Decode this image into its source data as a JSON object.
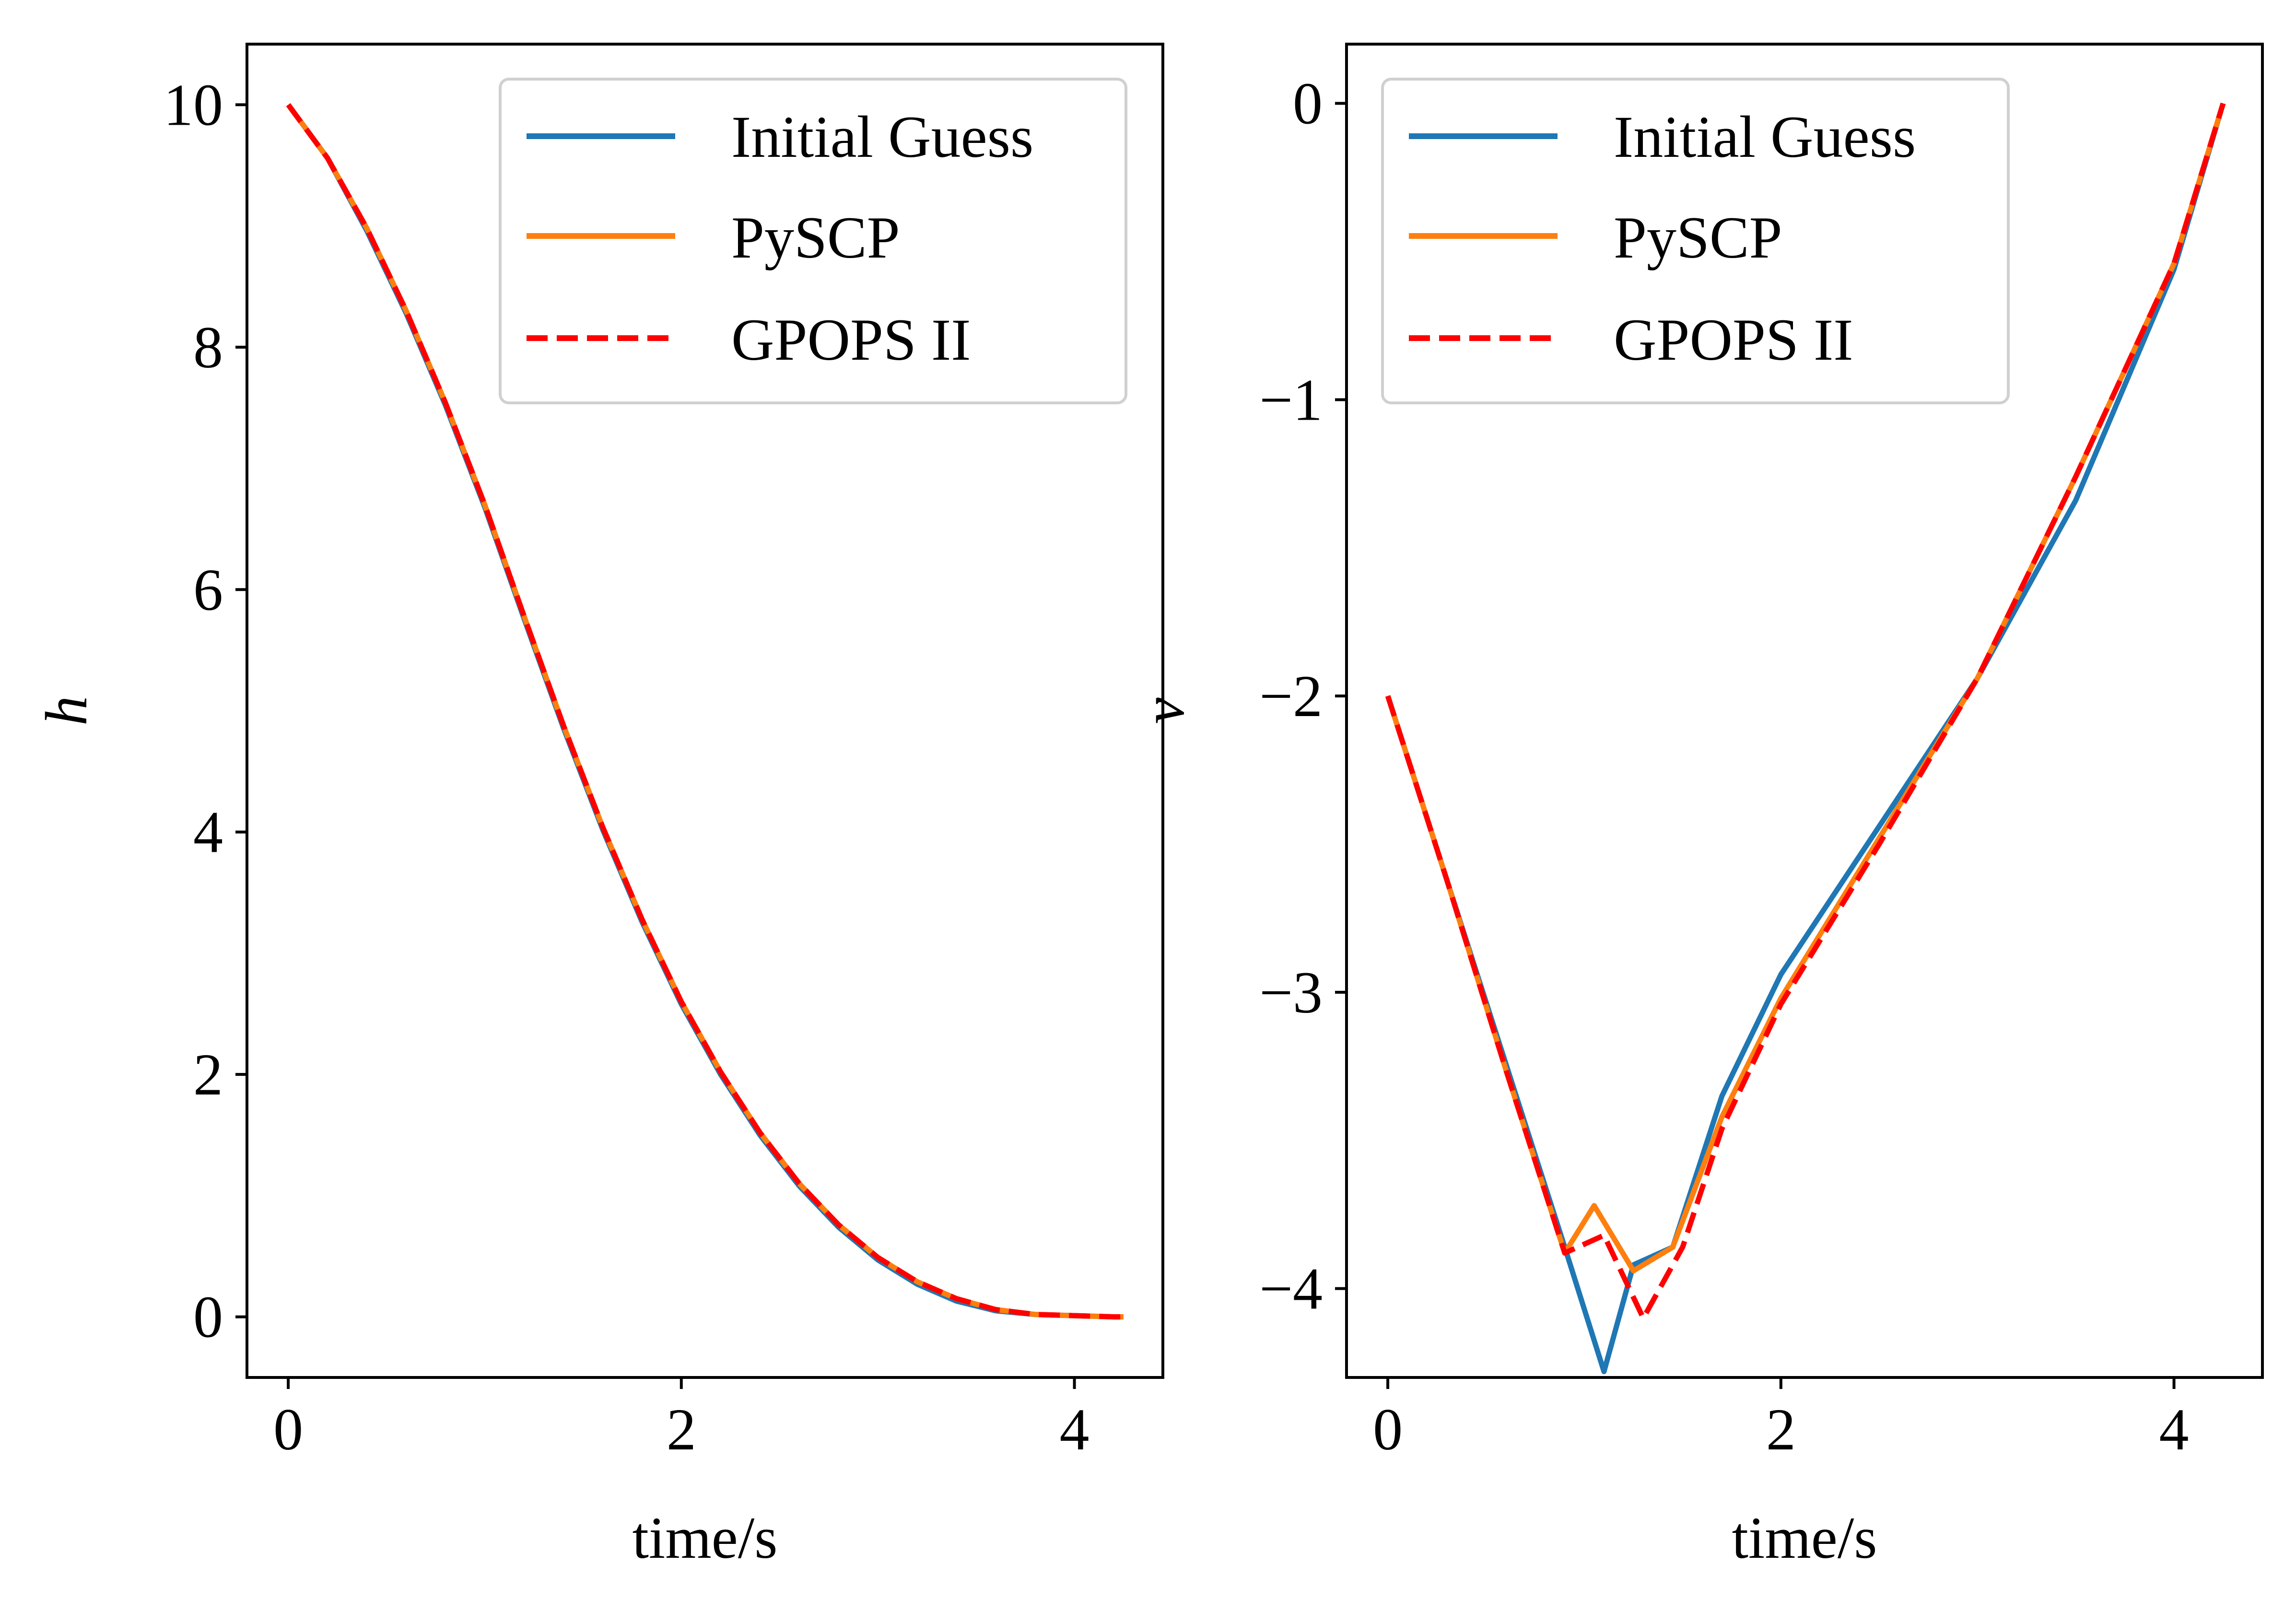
{
  "colors": {
    "initial_guess": "#1f77b4",
    "pyscp": "#ff7f0e",
    "gpops": "#ff0000",
    "legend_border": "#d0d0d0",
    "axis": "#000000"
  },
  "chart_data": [
    {
      "type": "line",
      "title": "",
      "xlabel": "time/s",
      "ylabel": "h",
      "xlim": [
        -0.21,
        4.45
      ],
      "ylim": [
        -0.5,
        10.5
      ],
      "xticks": [
        0,
        2,
        4
      ],
      "xtick_labels": [
        "0",
        "2",
        "4"
      ],
      "yticks": [
        0,
        2,
        4,
        6,
        8,
        10
      ],
      "ytick_labels": [
        "0",
        "2",
        "4",
        "6",
        "8",
        "10"
      ],
      "grid": false,
      "legend_position": "top-right",
      "legend": [
        "Initial Guess",
        "PySCP",
        "GPOPS II"
      ],
      "series": [
        {
          "name": "Initial Guess",
          "style": "solid",
          "x": [
            0,
            0.2,
            0.4,
            0.6,
            0.8,
            1.0,
            1.2,
            1.4,
            1.6,
            1.8,
            2.0,
            2.2,
            2.4,
            2.6,
            2.8,
            3.0,
            3.2,
            3.4,
            3.6,
            3.8,
            4.0,
            4.2,
            4.25
          ],
          "y": [
            10,
            9.56,
            8.96,
            8.28,
            7.52,
            6.68,
            5.76,
            4.86,
            4.02,
            3.26,
            2.58,
            2.0,
            1.5,
            1.08,
            0.74,
            0.47,
            0.27,
            0.13,
            0.05,
            0.02,
            0.01,
            0.0,
            0.0
          ]
        },
        {
          "name": "PySCP",
          "style": "solid",
          "x": [
            0,
            0.2,
            0.4,
            0.6,
            0.8,
            1.0,
            1.2,
            1.4,
            1.6,
            1.8,
            2.0,
            2.2,
            2.4,
            2.6,
            2.8,
            3.0,
            3.2,
            3.4,
            3.6,
            3.8,
            4.0,
            4.2,
            4.25
          ],
          "y": [
            10,
            9.56,
            8.98,
            8.3,
            7.54,
            6.7,
            5.78,
            4.88,
            4.04,
            3.28,
            2.6,
            2.02,
            1.52,
            1.1,
            0.76,
            0.49,
            0.29,
            0.15,
            0.06,
            0.02,
            0.01,
            0.0,
            0.0
          ]
        },
        {
          "name": "GPOPS II",
          "style": "dashed",
          "x": [
            0,
            0.2,
            0.4,
            0.6,
            0.8,
            1.0,
            1.2,
            1.4,
            1.6,
            1.8,
            2.0,
            2.2,
            2.4,
            2.6,
            2.8,
            3.0,
            3.2,
            3.4,
            3.6,
            3.8,
            4.0,
            4.2,
            4.25
          ],
          "y": [
            10,
            9.56,
            8.98,
            8.3,
            7.54,
            6.7,
            5.78,
            4.88,
            4.04,
            3.28,
            2.6,
            2.02,
            1.52,
            1.1,
            0.76,
            0.49,
            0.29,
            0.15,
            0.06,
            0.02,
            0.01,
            0.0,
            0.0
          ]
        }
      ]
    },
    {
      "type": "line",
      "title": "",
      "xlabel": "time/s",
      "ylabel": "v",
      "xlim": [
        -0.21,
        4.45
      ],
      "ylim": [
        -4.3,
        0.2
      ],
      "xticks": [
        0,
        2,
        4
      ],
      "xtick_labels": [
        "0",
        "2",
        "4"
      ],
      "yticks": [
        0,
        -1,
        -2,
        -3,
        -4
      ],
      "ytick_labels": [
        "0",
        "−1",
        "−2",
        "−3",
        "−4"
      ],
      "grid": false,
      "legend_position": "top-left",
      "legend": [
        "Initial Guess",
        "PySCP",
        "GPOPS II"
      ],
      "series": [
        {
          "name": "Initial Guess",
          "style": "solid",
          "x": [
            0,
            0.3,
            0.6,
            0.9,
            1.1,
            1.25,
            1.45,
            1.7,
            2.0,
            2.5,
            3.0,
            3.5,
            4.0,
            4.25
          ],
          "y": [
            -2.0,
            -2.62,
            -3.24,
            -3.86,
            -4.28,
            -3.92,
            -3.86,
            -3.35,
            -2.94,
            -2.44,
            -1.94,
            -1.34,
            -0.56,
            0.0
          ]
        },
        {
          "name": "PySCP",
          "style": "solid",
          "x": [
            0,
            0.3,
            0.6,
            0.9,
            1.05,
            1.25,
            1.45,
            1.7,
            2.0,
            2.5,
            3.0,
            3.5,
            4.0,
            4.25
          ],
          "y": [
            -2.0,
            -2.62,
            -3.26,
            -3.88,
            -3.72,
            -3.94,
            -3.86,
            -3.42,
            -3.02,
            -2.48,
            -1.94,
            -1.26,
            -0.54,
            0.0
          ]
        },
        {
          "name": "GPOPS II",
          "style": "dashed",
          "x": [
            0,
            0.3,
            0.6,
            0.9,
            1.1,
            1.3,
            1.5,
            1.7,
            2.0,
            2.5,
            3.0,
            3.5,
            4.0,
            4.25
          ],
          "y": [
            -2.0,
            -2.62,
            -3.26,
            -3.88,
            -3.82,
            -4.1,
            -3.86,
            -3.46,
            -3.04,
            -2.5,
            -1.94,
            -1.26,
            -0.54,
            0.0
          ]
        }
      ]
    }
  ]
}
